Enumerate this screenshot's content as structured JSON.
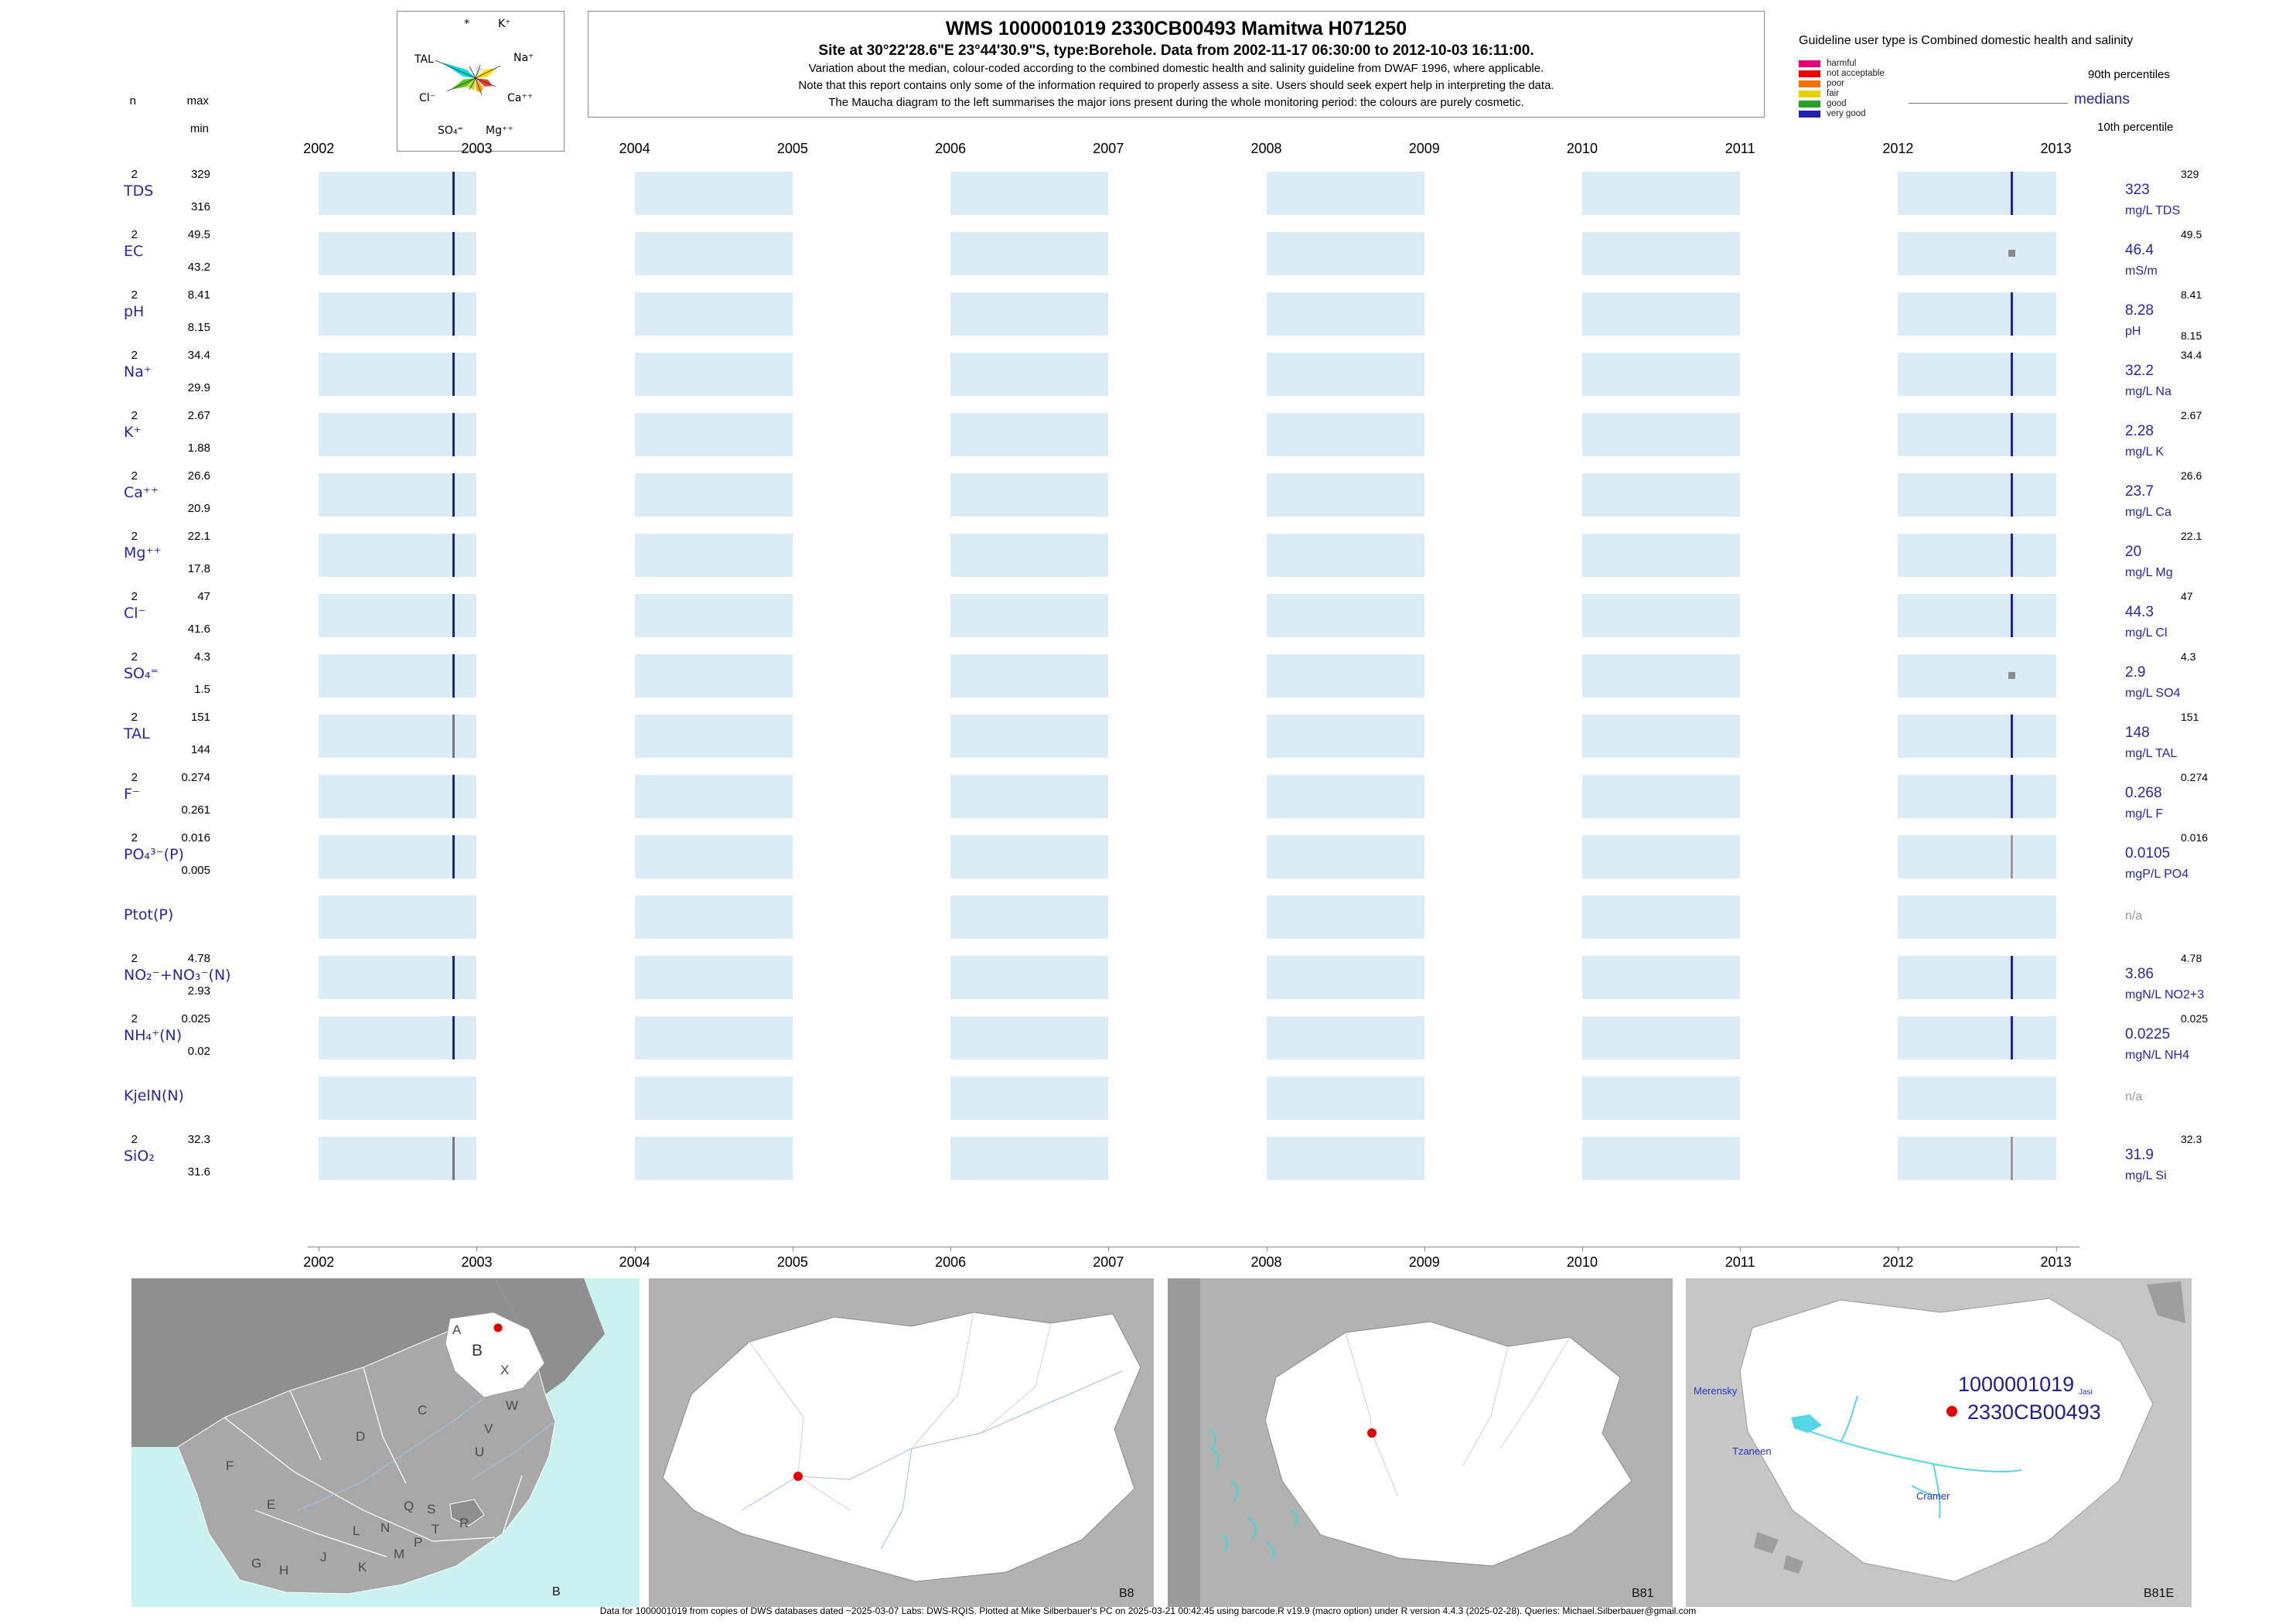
{
  "header": {
    "title": "WMS 1000001019 2330CB00493 Mamitwa H071250",
    "subtitle": "Site at 30°22'28.6\"E 23°44'30.9\"S, type:Borehole.  Data from 2002-11-17 06:30:00 to 2012-10-03 16:11:00.",
    "line3": "Variation about the median,  colour-coded according to the combined domestic health and salinity guideline from DWAF 1996, where applicable.",
    "line4": "Note that this report contains only some of the information required to properly assess a site. Users should seek expert help in interpreting the data.",
    "line5": "The Maucha diagram to the left summarises the major ions present during the whole monitoring period: the colours are purely cosmetic."
  },
  "columns": {
    "n": "n",
    "max": "max",
    "min": "min"
  },
  "maucha": {
    "ion_labels": [
      "*",
      "K⁺",
      "TAL",
      "Na⁺",
      "Cl⁻",
      "Ca⁺⁺",
      "SO₄⁼",
      "Mg⁺⁺"
    ]
  },
  "guideline_legend": {
    "title": "Guideline user type is Combined domestic health and salinity",
    "classes": [
      {
        "label": "harmful",
        "color": "#e8007a"
      },
      {
        "label": "not acceptable",
        "color": "#ee0000"
      },
      {
        "label": "poor",
        "color": "#f07000"
      },
      {
        "label": "fair",
        "color": "#e6d200"
      },
      {
        "label": "good",
        "color": "#2aa02a"
      },
      {
        "label": "very good",
        "color": "#2020aa"
      }
    ],
    "p90_label": "90th percentiles",
    "median_label": "medians",
    "p10_label": "10th percentile"
  },
  "chart_data": {
    "type": "scatter",
    "title": "WMS 1000001019 2330CB00493 Mamitwa H071250",
    "x_axis": {
      "ticks": [
        2002,
        2003,
        2004,
        2005,
        2006,
        2007,
        2008,
        2009,
        2010,
        2011,
        2012,
        2013
      ],
      "range": [
        2001.46,
        2013.34
      ],
      "sample_dates": [
        "2002-11-17",
        "2012-10-03"
      ]
    },
    "band_color": "#dcecf7",
    "strip_range": [
      2001.93,
      2013.15
    ],
    "rows": [
      {
        "id": "TDS",
        "label": "TDS",
        "n": "2",
        "max": "329",
        "min": "316",
        "median": "323",
        "p90": "329",
        "p10": "",
        "unit": "mg/L TDS",
        "points": [
          {
            "x": 2002.85,
            "style": "bar",
            "color": "#232399"
          },
          {
            "x": 2012.72,
            "style": "bar",
            "color": "#232399"
          }
        ]
      },
      {
        "id": "EC",
        "label": "EC",
        "n": "2",
        "max": "49.5",
        "min": "43.2",
        "median": "46.4",
        "p90": "49.5",
        "p10": "",
        "unit": "mS/m",
        "points": [
          {
            "x": 2002.85,
            "style": "bar",
            "color": "#232399"
          },
          {
            "x": 2012.72,
            "style": "dot",
            "color": "#8a8a8a"
          }
        ]
      },
      {
        "id": "pH",
        "label": "pH",
        "n": "2",
        "max": "8.41",
        "min": "8.15",
        "median": "8.28",
        "p90": "8.41",
        "p10": "8.15",
        "unit": "pH",
        "points": [
          {
            "x": 2002.85,
            "style": "bar",
            "color": "#232399"
          },
          {
            "x": 2012.72,
            "style": "bar",
            "color": "#232399"
          }
        ]
      },
      {
        "id": "Na",
        "label": "Na⁺",
        "n": "2",
        "max": "34.4",
        "min": "29.9",
        "median": "32.2",
        "p90": "34.4",
        "p10": "",
        "unit": "mg/L Na",
        "points": [
          {
            "x": 2002.85,
            "style": "bar",
            "color": "#232399"
          },
          {
            "x": 2012.72,
            "style": "bar",
            "color": "#232399"
          }
        ]
      },
      {
        "id": "K",
        "label": "K⁺",
        "n": "2",
        "max": "2.67",
        "min": "1.88",
        "median": "2.28",
        "p90": "2.67",
        "p10": "",
        "unit": "mg/L K",
        "points": [
          {
            "x": 2002.85,
            "style": "bar",
            "color": "#232399"
          },
          {
            "x": 2012.72,
            "style": "bar",
            "color": "#232399"
          }
        ]
      },
      {
        "id": "Ca",
        "label": "Ca⁺⁺",
        "n": "2",
        "max": "26.6",
        "min": "20.9",
        "median": "23.7",
        "p90": "26.6",
        "p10": "",
        "unit": "mg/L Ca",
        "points": [
          {
            "x": 2002.85,
            "style": "bar",
            "color": "#232399"
          },
          {
            "x": 2012.72,
            "style": "bar",
            "color": "#232399"
          }
        ]
      },
      {
        "id": "Mg",
        "label": "Mg⁺⁺",
        "n": "2",
        "max": "22.1",
        "min": "17.8",
        "median": "20",
        "p90": "22.1",
        "p10": "",
        "unit": "mg/L Mg",
        "points": [
          {
            "x": 2002.85,
            "style": "bar",
            "color": "#232399"
          },
          {
            "x": 2012.72,
            "style": "bar",
            "color": "#232399"
          }
        ]
      },
      {
        "id": "Cl",
        "label": "Cl⁻",
        "n": "2",
        "max": "47",
        "min": "41.6",
        "median": "44.3",
        "p90": "47",
        "p10": "",
        "unit": "mg/L Cl",
        "points": [
          {
            "x": 2002.85,
            "style": "bar",
            "color": "#232399"
          },
          {
            "x": 2012.72,
            "style": "bar",
            "color": "#232399"
          }
        ]
      },
      {
        "id": "SO4",
        "label": "SO₄⁼",
        "n": "2",
        "max": "4.3",
        "min": "1.5",
        "median": "2.9",
        "p90": "4.3",
        "p10": "",
        "unit": "mg/L SO4",
        "points": [
          {
            "x": 2002.85,
            "style": "bar",
            "color": "#232399"
          },
          {
            "x": 2012.72,
            "style": "dot",
            "color": "#8a8a8a"
          }
        ]
      },
      {
        "id": "TAL",
        "label": "TAL",
        "n": "2",
        "max": "151",
        "min": "144",
        "median": "148",
        "p90": "151",
        "p10": "",
        "unit": "mg/L TAL",
        "points": [
          {
            "x": 2002.85,
            "style": "bar",
            "color": "#777777"
          },
          {
            "x": 2012.72,
            "style": "bar",
            "color": "#232399"
          }
        ]
      },
      {
        "id": "F",
        "label": "F⁻",
        "n": "2",
        "max": "0.274",
        "min": "0.261",
        "median": "0.268",
        "p90": "0.274",
        "p10": "",
        "unit": "mg/L F",
        "points": [
          {
            "x": 2002.85,
            "style": "bar",
            "color": "#232399"
          },
          {
            "x": 2012.72,
            "style": "bar",
            "color": "#232399"
          }
        ]
      },
      {
        "id": "PO4",
        "label": "PO₄³⁻(P)",
        "n": "2",
        "max": "0.016",
        "min": "0.005",
        "median": "0.0105",
        "p90": "0.016",
        "p10": "",
        "unit": "mgP/L PO4",
        "points": [
          {
            "x": 2002.85,
            "style": "bar",
            "color": "#232399"
          },
          {
            "x": 2012.72,
            "style": "bar",
            "color": "#999999"
          }
        ]
      },
      {
        "id": "Ptot",
        "label": "Ptot(P)",
        "n": "",
        "max": "",
        "min": "",
        "median": "",
        "p90": "",
        "p10": "",
        "unit": "",
        "na": "n/a",
        "points": []
      },
      {
        "id": "NO2NO3",
        "label": "NO₂⁻+NO₃⁻(N)",
        "n": "2",
        "max": "4.78",
        "min": "2.93",
        "median": "3.86",
        "p90": "4.78",
        "p10": "",
        "unit": "mgN/L NO2+3",
        "points": [
          {
            "x": 2002.85,
            "style": "bar",
            "color": "#232399"
          },
          {
            "x": 2012.72,
            "style": "bar",
            "color": "#232399"
          }
        ]
      },
      {
        "id": "NH4",
        "label": "NH₄⁺(N)",
        "n": "2",
        "max": "0.025",
        "min": "0.02",
        "median": "0.0225",
        "p90": "0.025",
        "p10": "",
        "unit": "mgN/L NH4",
        "points": [
          {
            "x": 2002.85,
            "style": "bar",
            "color": "#232399"
          },
          {
            "x": 2012.72,
            "style": "bar",
            "color": "#232399"
          }
        ]
      },
      {
        "id": "KjelN",
        "label": "KjelN(N)",
        "n": "",
        "max": "",
        "min": "",
        "median": "",
        "p90": "",
        "p10": "",
        "unit": "",
        "na": "n/a",
        "points": []
      },
      {
        "id": "SiO2",
        "label": "SiO₂",
        "n": "2",
        "max": "32.3",
        "min": "31.6",
        "median": "31.9",
        "p90": "32.3",
        "p10": "",
        "unit": "mg/L Si",
        "points": [
          {
            "x": 2002.85,
            "style": "bar",
            "color": "#777777"
          },
          {
            "x": 2012.72,
            "style": "bar",
            "color": "#999999"
          }
        ]
      }
    ]
  },
  "maps": {
    "panel1": {
      "panel_label": "B",
      "regions": [
        "A",
        "B",
        "X",
        "C",
        "W",
        "D",
        "V",
        "U",
        "F",
        "E",
        "L",
        "N",
        "Q",
        "S",
        "T",
        "R",
        "P",
        "M",
        "K",
        "J",
        "H",
        "G"
      ]
    },
    "panel2": {
      "panel_label": "B8"
    },
    "panel3": {
      "panel_label": "B81"
    },
    "panel4": {
      "panel_label": "B81E",
      "site_id": "1000001019",
      "site_code": "2330CB00493",
      "towns": [
        "Merensky",
        "Tzaneen",
        "Cramer"
      ],
      "area_label": "Jasi"
    }
  },
  "footer": {
    "text": "Data for 1000001019 from copies of DWS databases dated ~2025-03-07 Labs: DWS-RQIS. Plotted at Mike Silberbauer's PC on 2025-03-21 00:42:45 using barcode.R v19.9 (macro option) under R version 4.4.3 (2025-02-28). Queries: Michael.Silberbauer@gmail.com"
  }
}
